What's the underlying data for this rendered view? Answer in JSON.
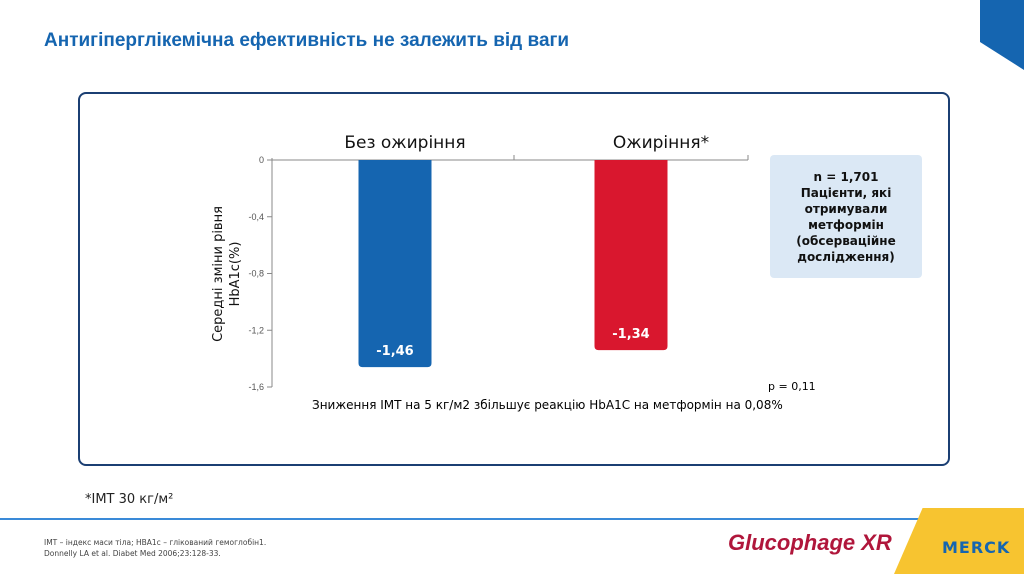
{
  "title": "Антигіперглікемічна ефективність не залежить від ваги",
  "info_box": [
    "n = 1,701",
    "Пацієнти, які",
    "отримували",
    "метформін",
    "(обсерваційне",
    "дослідження)"
  ],
  "p_value": "p = 0,11",
  "caption": "Зниження ІМТ на 5 кг/м2 збільшує реакцію HbA1C на метформін на 0,08%",
  "footnote": "*ІМТ  30 кг/м²",
  "refs": [
    "ІМТ – індекс маси тіла; HBA1c – глікований гемоглобін1.",
    "Donnelly LA et al. Diabet Med 2006;23:128-33."
  ],
  "logos": {
    "glucophage": "Glucophage XR",
    "merck": "MERCK"
  },
  "colors": {
    "accent": "#1565b0",
    "bar_blue": "#1565b0",
    "bar_red": "#d9172e"
  },
  "chart_data": {
    "type": "bar",
    "categories": [
      "Без ожиріння",
      "Ожиріння*"
    ],
    "values": [
      -1.46,
      -1.34
    ],
    "data_labels": [
      "-1,46",
      "-1,34"
    ],
    "colors": [
      "#1565b0",
      "#d9172e"
    ],
    "ylabel_lines": [
      "Середні зміни рівня",
      "HbA1c(%)"
    ],
    "ylim": [
      -1.6,
      0
    ],
    "yticks": [
      0,
      -0.4,
      -0.8,
      -1.2,
      -1.6
    ],
    "ytick_labels": [
      "0",
      "-0,4",
      "-0,8",
      "-1,2",
      "-1,6"
    ],
    "grid": false
  }
}
